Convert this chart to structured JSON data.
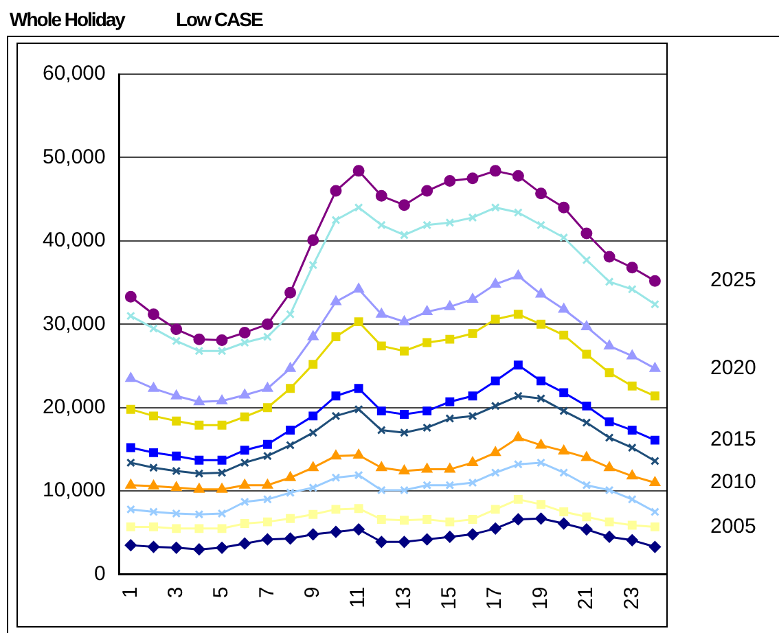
{
  "chart_data": {
    "type": "line",
    "title": "Whole Holiday",
    "subtitle": "Low CASE",
    "categories": [
      "1",
      null,
      "3",
      null,
      "5",
      null,
      "7",
      null,
      "9",
      null,
      "11",
      null,
      "13",
      null,
      "15",
      null,
      "17",
      null,
      "19",
      null,
      "21",
      null,
      "23",
      null
    ],
    "ylim": [
      0,
      60000
    ],
    "yticks": [
      0,
      {
        "value": 10000,
        "label": "10,000"
      },
      {
        "value": 20000,
        "label": "20,000"
      },
      {
        "value": 30000,
        "label": "30,000"
      },
      {
        "value": 40000,
        "label": "40,000"
      },
      {
        "value": 50000,
        "label": "50,000"
      },
      {
        "value": 60000,
        "label": "60,000"
      }
    ],
    "grid": "y",
    "legend": false,
    "series": [
      {
        "name": "2025",
        "color": "#800080",
        "marker": "circle",
        "values": [
          33300,
          31200,
          29400,
          28200,
          28100,
          29000,
          30000,
          33800,
          40100,
          46000,
          48400,
          45400,
          44300,
          46000,
          47200,
          47500,
          48400,
          47800,
          45700,
          44000,
          40900,
          38100,
          36800,
          35200
        ]
      },
      {
        "color": "#99e6e6",
        "marker": "cross",
        "values": [
          31000,
          29500,
          28000,
          26800,
          26800,
          27800,
          28500,
          31200,
          37100,
          42500,
          44000,
          41900,
          40700,
          41900,
          42200,
          42800,
          44000,
          43400,
          41900,
          40400,
          37700,
          35100,
          34200,
          32400
        ]
      },
      {
        "name": "2020",
        "color": "#9999ff",
        "marker": "triangle",
        "values": [
          23500,
          22300,
          21400,
          20700,
          20800,
          21500,
          22300,
          24700,
          28500,
          32700,
          34200,
          31200,
          30300,
          31500,
          32100,
          33000,
          34800,
          35800,
          33600,
          31800,
          29700,
          27400,
          26200,
          24700
        ]
      },
      {
        "color": "#e6d800",
        "marker": "square",
        "values": [
          19800,
          19000,
          18400,
          17900,
          17900,
          18900,
          20000,
          22300,
          25200,
          28500,
          30300,
          27400,
          26800,
          27800,
          28200,
          28900,
          30600,
          31200,
          30000,
          28700,
          26400,
          24200,
          22600,
          21400
        ]
      },
      {
        "name": "2015",
        "color": "#0000ff",
        "marker": "square",
        "values": [
          15200,
          14600,
          14200,
          13700,
          13700,
          14900,
          15600,
          17300,
          19000,
          21400,
          22300,
          19600,
          19200,
          19600,
          20700,
          21400,
          23200,
          25100,
          23200,
          21800,
          20200,
          18300,
          17300,
          16100
        ]
      },
      {
        "color": "#1f4e79",
        "marker": "cross",
        "values": [
          13400,
          12800,
          12400,
          12100,
          12200,
          13400,
          14200,
          15500,
          17000,
          19000,
          19800,
          17300,
          17000,
          17600,
          18700,
          19000,
          20200,
          21400,
          21100,
          19600,
          18200,
          16400,
          15200,
          13600
        ]
      },
      {
        "name": "2010",
        "color": "#ff9900",
        "marker": "triangle",
        "values": [
          10700,
          10600,
          10400,
          10200,
          10200,
          10700,
          10700,
          11600,
          12800,
          14200,
          14300,
          12800,
          12400,
          12600,
          12600,
          13400,
          14600,
          16400,
          15500,
          14800,
          14000,
          12800,
          11800,
          11000
        ]
      },
      {
        "color": "#99ccff",
        "marker": "cross",
        "values": [
          7800,
          7500,
          7300,
          7200,
          7300,
          8700,
          9000,
          9800,
          10400,
          11600,
          11900,
          10100,
          10100,
          10700,
          10700,
          11000,
          12200,
          13200,
          13400,
          12200,
          10700,
          10100,
          9000,
          7500
        ]
      },
      {
        "name": "2005",
        "color": "#ffff99",
        "marker": "square",
        "values": [
          5700,
          5700,
          5500,
          5500,
          5500,
          6100,
          6300,
          6700,
          7200,
          7800,
          7900,
          6600,
          6500,
          6600,
          6300,
          6600,
          7800,
          9000,
          8400,
          7500,
          6900,
          6300,
          5900,
          5700
        ]
      },
      {
        "color": "#000080",
        "marker": "diamond",
        "values": [
          3500,
          3300,
          3200,
          3000,
          3200,
          3700,
          4200,
          4300,
          4800,
          5100,
          5400,
          3900,
          3900,
          4200,
          4500,
          4800,
          5500,
          6600,
          6700,
          6100,
          5400,
          4500,
          4100,
          3300
        ]
      }
    ]
  }
}
